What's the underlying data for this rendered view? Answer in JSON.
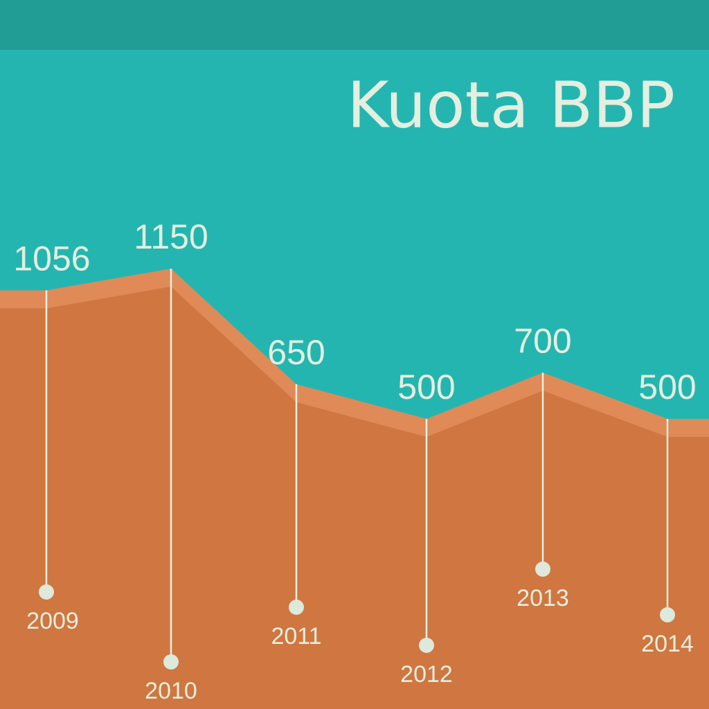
{
  "chart_data": {
    "type": "area",
    "title": "Kuota BBP",
    "categories": [
      "2009",
      "2010",
      "2011",
      "2012",
      "2013",
      "2014"
    ],
    "values": [
      1056,
      1150,
      650,
      500,
      700,
      500
    ],
    "color": "#d07640"
  }
}
